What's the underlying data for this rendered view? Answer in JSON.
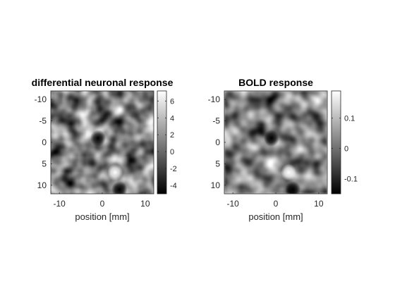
{
  "figure": {
    "background": "#ffffff",
    "axis_color": "#262626"
  },
  "chart_data": [
    {
      "type": "heatmap",
      "title": "differential neuronal response",
      "xlabel": "position [mm]",
      "ylabel": "",
      "xlim": [
        -12,
        12
      ],
      "ylim": [
        -12,
        12
      ],
      "y_reversed": true,
      "xticks": [
        -10,
        0,
        10
      ],
      "yticks": [
        -10,
        -5,
        0,
        5,
        10
      ],
      "colormap": "gray",
      "colorbar": {
        "range": [
          -5,
          7.2
        ],
        "ticks": [
          -4,
          -2,
          0,
          2,
          4,
          6
        ],
        "ticklabels": [
          "-4",
          "-2",
          "0",
          "2",
          "4",
          "6"
        ]
      },
      "features": [
        {
          "x": 3,
          "y": 7,
          "value": 7.2
        },
        {
          "x": -1,
          "y": -1,
          "value": -5
        },
        {
          "x": 4,
          "y": 11,
          "value": -4
        }
      ]
    },
    {
      "type": "heatmap",
      "title": "BOLD response",
      "xlabel": "position [mm]",
      "ylabel": "",
      "xlim": [
        -12,
        12
      ],
      "ylim": [
        -12,
        12
      ],
      "y_reversed": true,
      "xticks": [
        -10,
        0,
        10
      ],
      "yticks": [
        -10,
        -5,
        0,
        5,
        10
      ],
      "colormap": "gray",
      "colorbar": {
        "range": [
          -0.15,
          0.19
        ],
        "ticks": [
          -0.1,
          0,
          0.1
        ],
        "ticklabels": [
          "-0.1",
          "0",
          "0.1"
        ]
      },
      "features": [
        {
          "x": 3,
          "y": 7,
          "value": 0.19
        },
        {
          "x": -1,
          "y": -1,
          "value": -0.15
        },
        {
          "x": 4,
          "y": 11,
          "value": -0.13
        }
      ]
    }
  ]
}
